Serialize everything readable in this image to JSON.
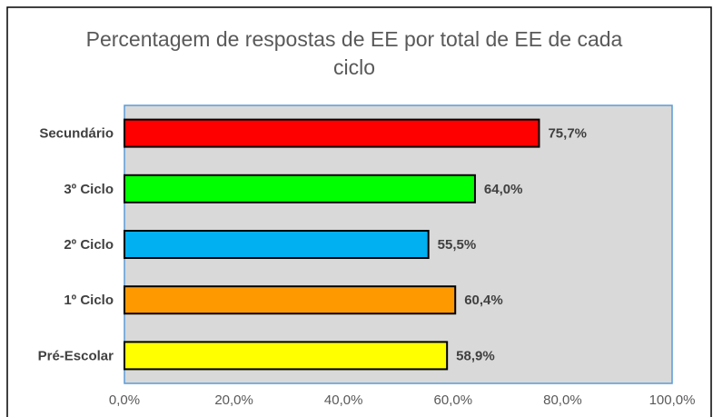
{
  "chart_data": {
    "type": "bar",
    "orientation": "horizontal",
    "title": "Percentagem de respostas de EE por total de EE de cada ciclo",
    "categories": [
      "Secundário",
      "3º Ciclo",
      "2º Ciclo",
      "1º Ciclo",
      "Pré-Escolar"
    ],
    "values": [
      75.7,
      64.0,
      55.5,
      60.4,
      58.9
    ],
    "value_labels": [
      "75,7%",
      "64,0%",
      "55,5%",
      "60,4%",
      "58,9%"
    ],
    "colors": [
      "#ff0000",
      "#00ff00",
      "#00b0f0",
      "#ff9900",
      "#ffff00"
    ],
    "xlim": [
      0,
      100
    ],
    "xticks": [
      {
        "value": 0,
        "label": "0,0%"
      },
      {
        "value": 20,
        "label": "20,0%"
      },
      {
        "value": 40,
        "label": "40,0%"
      },
      {
        "value": 60,
        "label": "60,0%"
      },
      {
        "value": 80,
        "label": "80,0%"
      },
      {
        "value": 100,
        "label": "100,0%"
      }
    ],
    "grid": false
  }
}
